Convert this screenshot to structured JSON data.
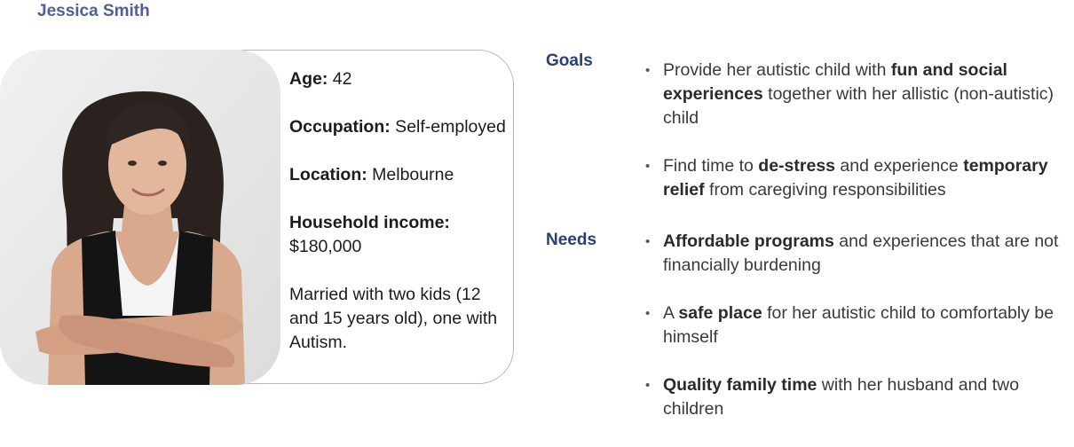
{
  "persona": {
    "name": "Jessica Smith",
    "photo_icon": "portrait-photo-icon"
  },
  "facts": {
    "age_label": "Age:",
    "age_value": " 42",
    "occupation_label": "Occupation:",
    "occupation_value": " Self-employed",
    "location_label": "Location:",
    "location_value": " Melbourne",
    "income_label": "Household income:",
    "income_value": " $180,000",
    "family": "Married with two kids (12 and 15 years old), one with Autism."
  },
  "goals": {
    "label": "Goals",
    "items": [
      {
        "pre": "Provide her autistic child with ",
        "bold": "fun and social experiences",
        "post": " together with her allistic (non-autistic) child"
      },
      {
        "pre": "Find time to ",
        "bold": "de-stress",
        "mid": " and experience ",
        "bold2": "temporary relief",
        "post": " from caregiving responsibilities"
      }
    ]
  },
  "needs": {
    "label": "Needs",
    "items": [
      {
        "pre": "",
        "bold": "Affordable programs",
        "post": " and experiences that are not financially burdening"
      },
      {
        "pre": "A ",
        "bold": "safe place",
        "post": " for her autistic child to comfortably be himself"
      },
      {
        "pre": "",
        "bold": "Quality family time",
        "post": " with her husband and two children"
      }
    ]
  },
  "bullet_glyph": "•",
  "colors": {
    "name": "#4f5f97",
    "section_label": "#2c3e73",
    "card_border": "#b9b9b9"
  }
}
